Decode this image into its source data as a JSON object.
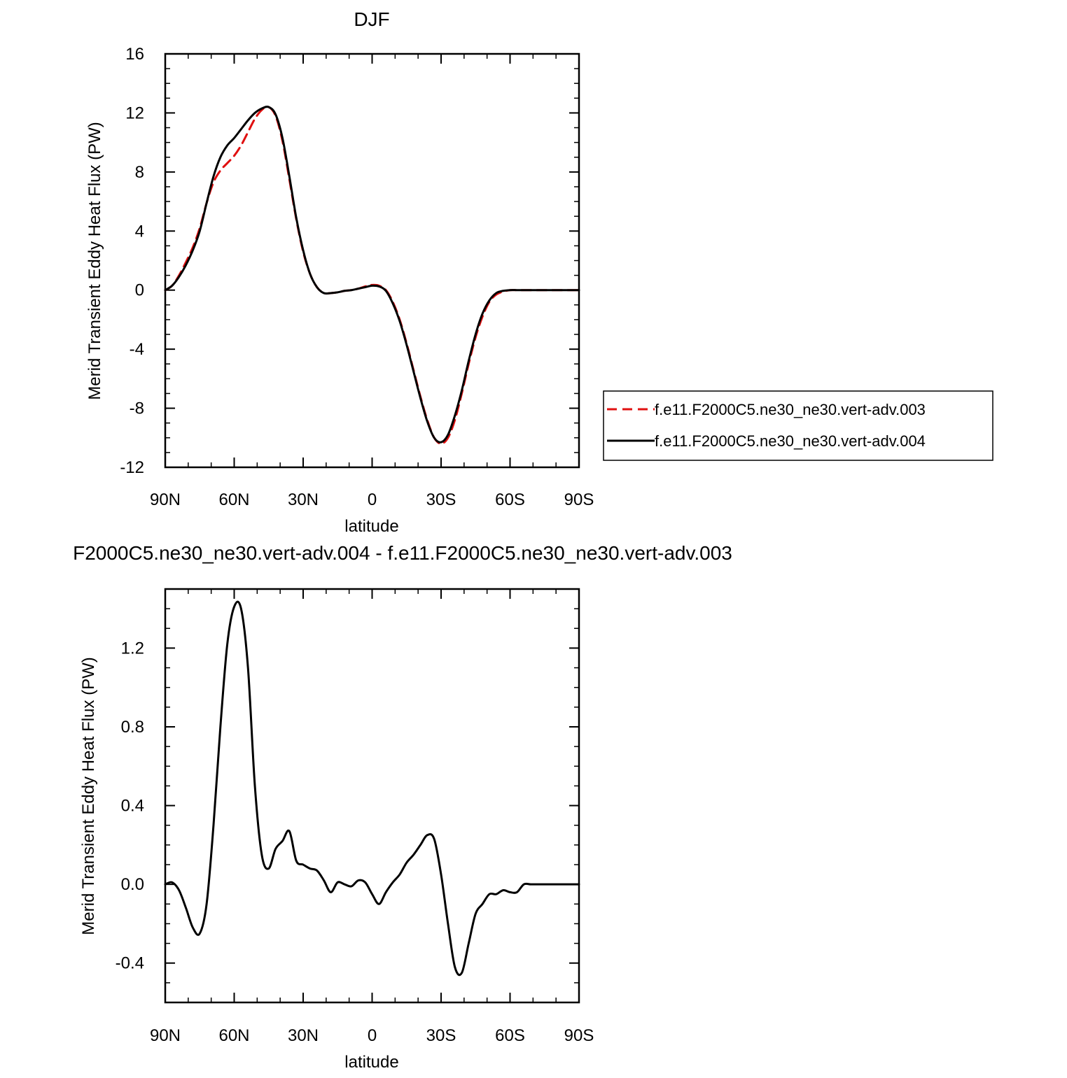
{
  "chart_data": [
    {
      "type": "line",
      "title": "DJF",
      "xlabel": "latitude",
      "ylabel": "Merid Transient Eddy Heat Flux (PW)",
      "xlim": [
        90,
        -90
      ],
      "ylim": [
        -12,
        16
      ],
      "x_ticks": [
        90,
        60,
        30,
        0,
        -30,
        -60,
        -90
      ],
      "x_tick_labels": [
        "90N",
        "60N",
        "30N",
        "0",
        "30S",
        "60S",
        "90S"
      ],
      "y_ticks": [
        -12,
        -8,
        -4,
        0,
        4,
        8,
        12,
        16
      ],
      "y_tick_labels": [
        "-12",
        "-8",
        "-4",
        "0",
        "4",
        "8",
        "12",
        "16"
      ],
      "legend_position": "right",
      "series": [
        {
          "name": "f.e11.F2000C5.ne30_ne30.vert-adv.003",
          "color": "#e01010",
          "dash": "dashed",
          "x": [
            90,
            87,
            84,
            81,
            78,
            75,
            72,
            69,
            66,
            63,
            60,
            57,
            54,
            51,
            48,
            45,
            42,
            39,
            36,
            33,
            30,
            27,
            24,
            21,
            18,
            15,
            12,
            9,
            6,
            3,
            0,
            -3,
            -6,
            -9,
            -12,
            -15,
            -18,
            -21,
            -24,
            -27,
            -30,
            -33,
            -36,
            -39,
            -42,
            -45,
            -48,
            -51,
            -54,
            -57,
            -60,
            -63,
            -66,
            -69,
            -72,
            -75,
            -78,
            -81,
            -84,
            -87,
            -90
          ],
          "y": [
            0.0,
            0.3,
            1.0,
            1.9,
            2.9,
            4.2,
            5.9,
            7.3,
            8.1,
            8.6,
            9.1,
            9.8,
            10.7,
            11.6,
            12.2,
            12.4,
            11.8,
            10.1,
            7.5,
            4.8,
            2.6,
            1.1,
            0.2,
            -0.2,
            -0.2,
            -0.15,
            -0.05,
            0.0,
            0.1,
            0.25,
            0.35,
            0.3,
            0.0,
            -0.8,
            -2.0,
            -3.6,
            -5.4,
            -7.2,
            -8.8,
            -10.0,
            -10.4,
            -10.0,
            -8.8,
            -7.0,
            -5.0,
            -3.2,
            -1.8,
            -0.8,
            -0.3,
            -0.1,
            0.0,
            0.0,
            0.0,
            0.0,
            0.0,
            0.0,
            0.0,
            0.0,
            0.0,
            0.0,
            0.0
          ]
        },
        {
          "name": "f.e11.F2000C5.ne30_ne30.vert-adv.004",
          "color": "#000000",
          "dash": "solid",
          "x": [
            90,
            87,
            84,
            81,
            78,
            75,
            72,
            69,
            66,
            63,
            60,
            57,
            54,
            51,
            48,
            45,
            42,
            39,
            36,
            33,
            30,
            27,
            24,
            21,
            18,
            15,
            12,
            9,
            6,
            3,
            0,
            -3,
            -6,
            -9,
            -12,
            -15,
            -18,
            -21,
            -24,
            -27,
            -30,
            -33,
            -36,
            -39,
            -42,
            -45,
            -48,
            -51,
            -54,
            -57,
            -60,
            -63,
            -66,
            -69,
            -72,
            -75,
            -78,
            -81,
            -84,
            -87,
            -90
          ],
          "y": [
            0.0,
            0.3,
            0.9,
            1.7,
            2.7,
            4.0,
            5.9,
            7.7,
            9.0,
            9.8,
            10.3,
            10.9,
            11.5,
            12.0,
            12.3,
            12.4,
            11.9,
            10.3,
            7.7,
            4.9,
            2.7,
            1.1,
            0.2,
            -0.2,
            -0.2,
            -0.15,
            -0.05,
            0.0,
            0.1,
            0.2,
            0.3,
            0.25,
            -0.05,
            -0.9,
            -2.1,
            -3.7,
            -5.5,
            -7.3,
            -8.9,
            -10.0,
            -10.3,
            -9.8,
            -8.5,
            -6.8,
            -4.8,
            -3.0,
            -1.6,
            -0.7,
            -0.2,
            -0.05,
            0.0,
            0.0,
            0.0,
            0.0,
            0.0,
            0.0,
            0.0,
            0.0,
            0.0,
            0.0,
            0.0
          ]
        }
      ]
    },
    {
      "type": "line",
      "title": "F2000C5.ne30_ne30.vert-adv.004 - f.e11.F2000C5.ne30_ne30.vert-adv.003",
      "xlabel": "latitude",
      "ylabel": "Merid Transient Eddy Heat Flux (PW)",
      "xlim": [
        90,
        -90
      ],
      "ylim": [
        -0.6,
        1.5
      ],
      "x_ticks": [
        90,
        60,
        30,
        0,
        -30,
        -60,
        -90
      ],
      "x_tick_labels": [
        "90N",
        "60N",
        "30N",
        "0",
        "30S",
        "60S",
        "90S"
      ],
      "y_ticks": [
        -0.4,
        0.0,
        0.4,
        0.8,
        1.2
      ],
      "y_tick_labels": [
        "-0.4",
        "0.0",
        "0.4",
        "0.8",
        "1.2"
      ],
      "series": [
        {
          "color": "#000000",
          "dash": "solid",
          "x": [
            90,
            87,
            84,
            81,
            78,
            75,
            72,
            69,
            66,
            63,
            60,
            57,
            54,
            51,
            48,
            45,
            42,
            39,
            36,
            33,
            30,
            27,
            24,
            21,
            18,
            15,
            12,
            9,
            6,
            3,
            0,
            -3,
            -6,
            -9,
            -12,
            -15,
            -18,
            -21,
            -24,
            -27,
            -30,
            -33,
            -36,
            -39,
            -42,
            -45,
            -48,
            -51,
            -54,
            -57,
            -60,
            -63,
            -66,
            -69,
            -72,
            -75,
            -78,
            -81,
            -84,
            -87,
            -90
          ],
          "y": [
            0.0,
            0.01,
            -0.03,
            -0.12,
            -0.22,
            -0.25,
            -0.1,
            0.3,
            0.8,
            1.22,
            1.41,
            1.4,
            1.1,
            0.5,
            0.15,
            0.08,
            0.18,
            0.22,
            0.27,
            0.12,
            0.1,
            0.08,
            0.07,
            0.02,
            -0.04,
            0.01,
            0.0,
            -0.01,
            0.02,
            0.01,
            -0.05,
            -0.1,
            -0.04,
            0.01,
            0.05,
            0.11,
            0.15,
            0.2,
            0.25,
            0.23,
            0.05,
            -0.2,
            -0.42,
            -0.45,
            -0.3,
            -0.15,
            -0.1,
            -0.05,
            -0.05,
            -0.03,
            -0.04,
            -0.04,
            0.0,
            0.0,
            0.0,
            0.0,
            0.0,
            0.0,
            0.0,
            0.0,
            0.0
          ]
        }
      ]
    }
  ]
}
